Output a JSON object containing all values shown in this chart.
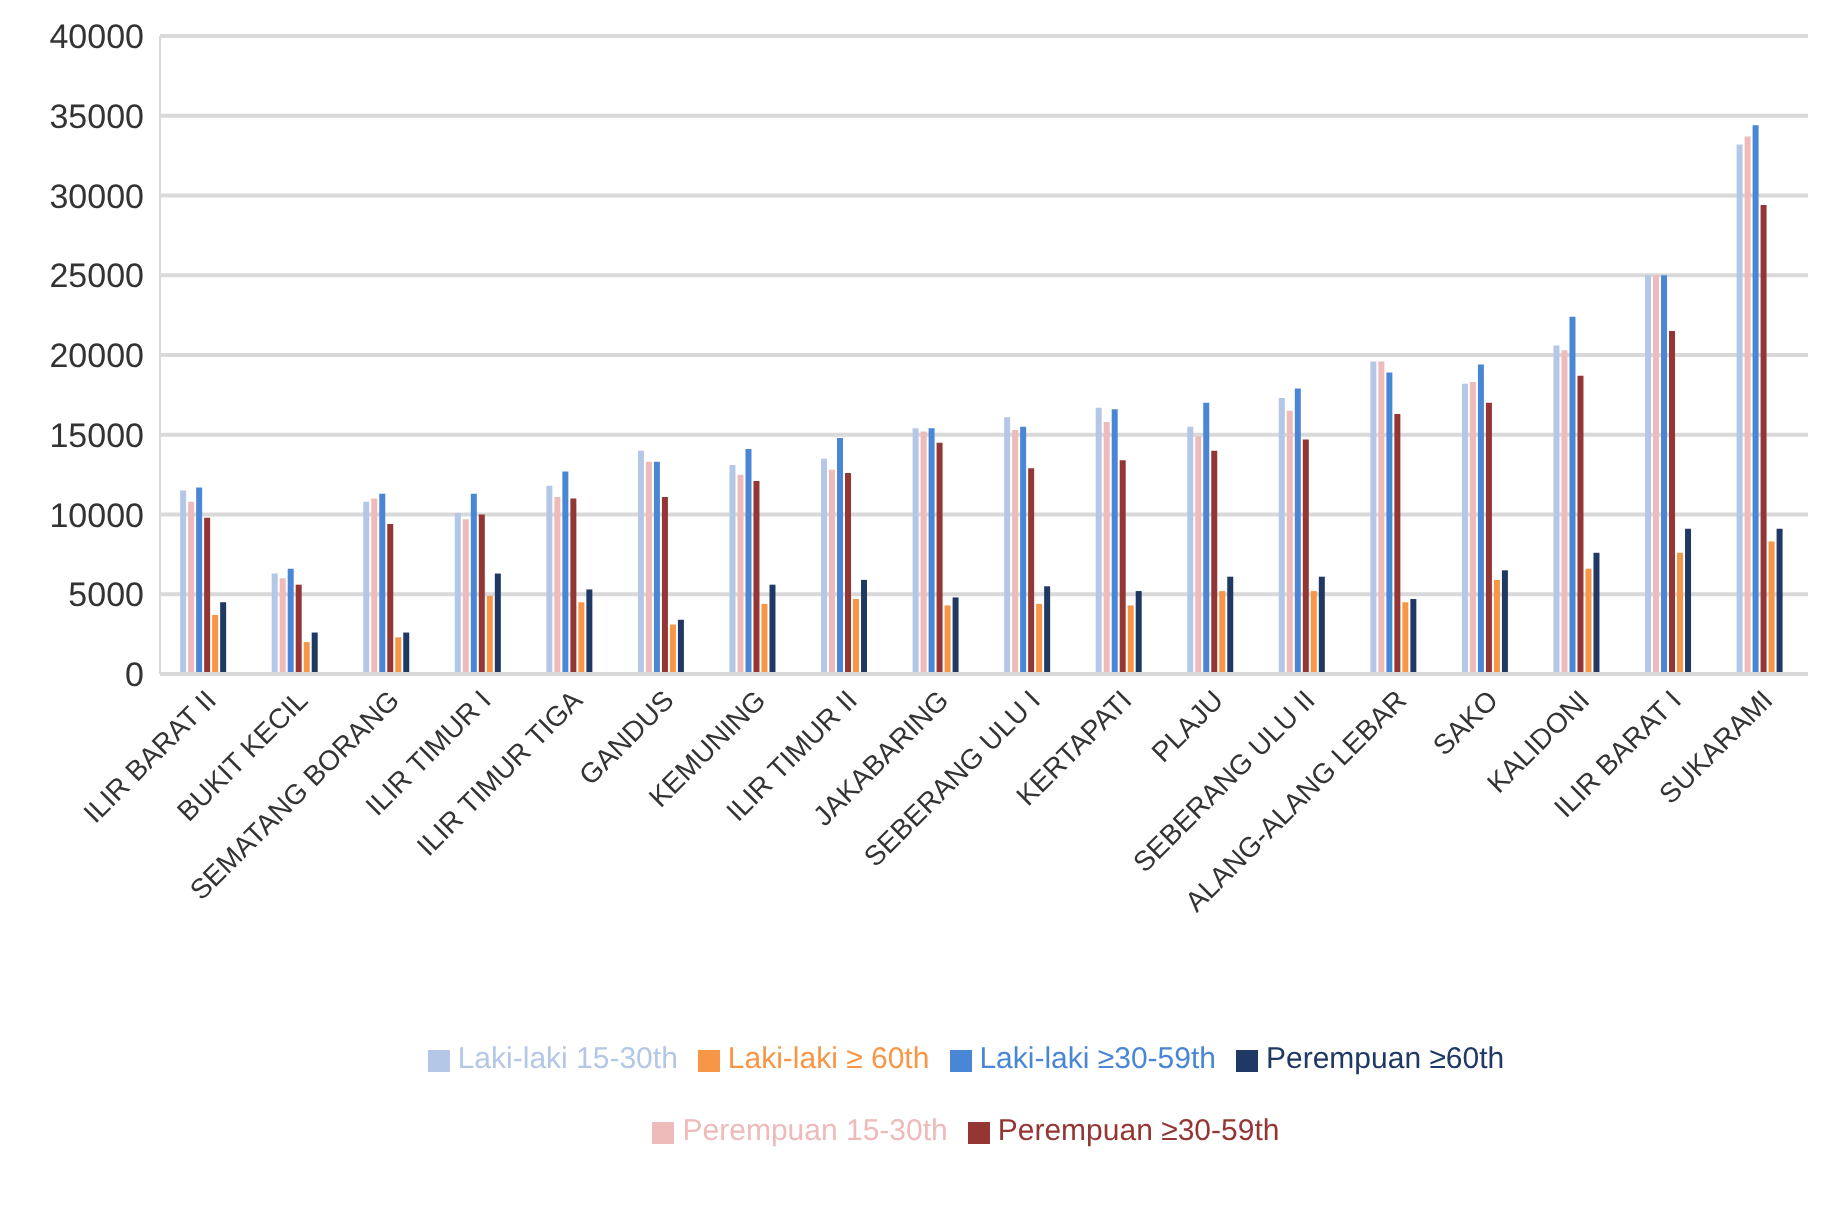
{
  "chart_data": {
    "type": "bar",
    "categories": [
      "ILIR BARAT II",
      "BUKIT KECIL",
      "SEMATANG BORANG",
      "ILIR TIMUR I",
      "ILIR TIMUR TIGA",
      "GANDUS",
      "KEMUNING",
      "ILIR TIMUR II",
      "JAKABARING",
      "SEBERANG ULU I",
      "KERTAPATI",
      "PLAJU",
      "SEBERANG ULU II",
      "ALANG-ALANG LEBAR",
      "SAKO",
      "KALIDONI",
      "ILIR BARAT I",
      "SUKARAMI"
    ],
    "series": [
      {
        "name": "Laki-laki 15-30th",
        "color": "#b4c7e7",
        "values": [
          11500,
          6300,
          10800,
          10100,
          11800,
          14000,
          13100,
          13500,
          15400,
          16100,
          16700,
          15500,
          17300,
          19600,
          18200,
          20600,
          25000,
          33200
        ]
      },
      {
        "name": "Perempuan 15-30th",
        "color": "#eebaba",
        "values": [
          10800,
          6000,
          11000,
          9700,
          11100,
          13300,
          12500,
          12800,
          15200,
          15300,
          15800,
          14900,
          16500,
          19600,
          18300,
          20300,
          25000,
          33700
        ]
      },
      {
        "name": "Laki-laki ≥30-59th",
        "color": "#4a86d6",
        "values": [
          11700,
          6600,
          11300,
          11300,
          12700,
          13300,
          14100,
          14800,
          15400,
          15500,
          16600,
          17000,
          17900,
          18900,
          19400,
          22400,
          25000,
          34400
        ]
      },
      {
        "name": "Perempuan ≥30-59th",
        "color": "#943634",
        "values": [
          9800,
          5600,
          9400,
          10000,
          11000,
          11100,
          12100,
          12600,
          14500,
          12900,
          13400,
          14000,
          14700,
          16300,
          17000,
          18700,
          21500,
          29400
        ]
      },
      {
        "name": "Laki-laki ≥ 60th",
        "color": "#f79646",
        "values": [
          3700,
          2000,
          2300,
          4900,
          4500,
          3100,
          4400,
          4700,
          4300,
          4400,
          4300,
          5200,
          5200,
          4500,
          5900,
          6600,
          7600,
          8300
        ]
      },
      {
        "name": "Perempuan  ≥60th",
        "color": "#1f3864",
        "values": [
          4500,
          2600,
          2600,
          6300,
          5300,
          3400,
          5600,
          5900,
          4800,
          5500,
          5200,
          6100,
          6100,
          4700,
          6500,
          7600,
          9100,
          9100
        ]
      }
    ],
    "ylim": [
      0,
      40000
    ],
    "yticks": [
      0,
      5000,
      10000,
      15000,
      20000,
      25000,
      30000,
      35000,
      40000
    ],
    "grid": "y",
    "legend": "bottom"
  }
}
